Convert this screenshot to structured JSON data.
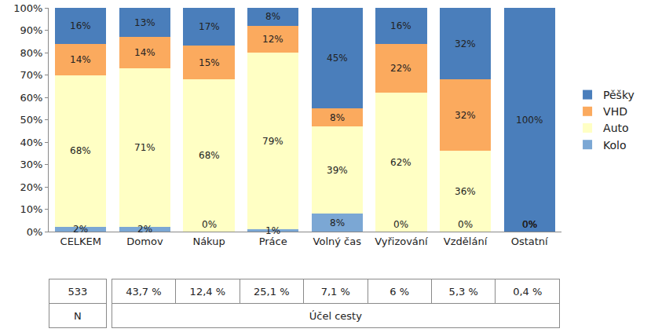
{
  "chart_data": {
    "type": "bar",
    "stacked": true,
    "data_labels": true,
    "grid": false,
    "legend": "right",
    "categories": [
      "CELKEM",
      "Domov",
      "Nákup",
      "Práce",
      "Volný čas",
      "Vyřizování",
      "Vzdělání",
      "Ostatní"
    ],
    "ylim": [
      0,
      100
    ],
    "yticks": [
      {
        "value": 0,
        "label": "0%"
      },
      {
        "value": 10,
        "label": "10%"
      },
      {
        "value": 20,
        "label": "20%"
      },
      {
        "value": 30,
        "label": "30%"
      },
      {
        "value": 40,
        "label": "40%"
      },
      {
        "value": 50,
        "label": "50%"
      },
      {
        "value": 60,
        "label": "60%"
      },
      {
        "value": 70,
        "label": "70%"
      },
      {
        "value": 80,
        "label": "80%"
      },
      {
        "value": 90,
        "label": "90%"
      },
      {
        "value": 100,
        "label": "100%"
      }
    ],
    "series": [
      {
        "name": "Kolo",
        "color": "#7ba7d4",
        "values": [
          2,
          2,
          0,
          1,
          8,
          0,
          0,
          0
        ],
        "value_labels": [
          "2%",
          "2%",
          "0%",
          "1%",
          "8%",
          "0%",
          "0%",
          "0%"
        ]
      },
      {
        "name": "Auto",
        "color": "#ffffc4",
        "values": [
          68,
          71,
          68,
          79,
          39,
          62,
          36,
          0
        ],
        "value_labels": [
          "68%",
          "71%",
          "68%",
          "79%",
          "39%",
          "62%",
          "36%",
          "0%"
        ]
      },
      {
        "name": "VHD",
        "color": "#fbaa5e",
        "values": [
          14,
          14,
          15,
          12,
          8,
          22,
          32,
          0
        ],
        "value_labels": [
          "14%",
          "14%",
          "15%",
          "12%",
          "8%",
          "22%",
          "32%",
          "0%"
        ]
      },
      {
        "name": "Pěšky",
        "color": "#4a7ebb",
        "values": [
          16,
          13,
          17,
          8,
          45,
          16,
          32,
          100
        ],
        "value_labels": [
          "16%",
          "13%",
          "17%",
          "8%",
          "45%",
          "16%",
          "32%",
          "100%"
        ]
      }
    ]
  },
  "table": {
    "rows": [
      [
        "533",
        "43,7 %",
        "12,4 %",
        "25,1 %",
        "7,1 %",
        "6 %",
        "5,3 %",
        "0,4 %"
      ],
      [
        "N",
        "Účel cesty"
      ]
    ]
  }
}
